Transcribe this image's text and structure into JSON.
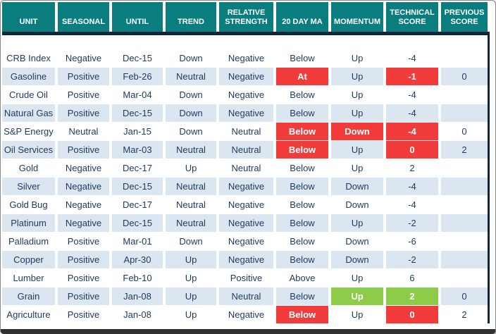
{
  "table": {
    "columns": [
      {
        "key": "unit",
        "label": "UNIT"
      },
      {
        "key": "seasonal",
        "label": "SEASONAL"
      },
      {
        "key": "until",
        "label": "UNTIL"
      },
      {
        "key": "trend",
        "label": "TREND"
      },
      {
        "key": "relative-strength",
        "label": "RELATIVE STRENGTH"
      },
      {
        "key": "20-day-ma",
        "label": "20 DAY MA"
      },
      {
        "key": "momentum",
        "label": "MOMENTUM"
      },
      {
        "key": "technical-score",
        "label": "TECHNICAL SCORE"
      },
      {
        "key": "previous-score",
        "label": "PREVIOUS SCORE"
      }
    ],
    "rows": [
      {
        "values": [
          "CRB Index",
          "Negative",
          "Dec-15",
          "Down",
          "Negative",
          "Below",
          "Up",
          "-4",
          ""
        ],
        "hl": {}
      },
      {
        "values": [
          "Gasoline",
          "Positive",
          "Feb-26",
          "Neutral",
          "Negative",
          "At",
          "Up",
          "-1",
          "0"
        ],
        "hl": {
          "5": "red",
          "7": "red"
        }
      },
      {
        "values": [
          "Crude Oil",
          "Positive",
          "Mar-04",
          "Down",
          "Negative",
          "Below",
          "Up",
          "-4",
          ""
        ],
        "hl": {}
      },
      {
        "values": [
          "Natural Gas",
          "Positive",
          "Dec-15",
          "Down",
          "Negative",
          "Below",
          "Up",
          "-4",
          ""
        ],
        "hl": {}
      },
      {
        "values": [
          "S&P Energy",
          "Neutral",
          "Jan-15",
          "Down",
          "Neutral",
          "Below",
          "Down",
          "-4",
          "0"
        ],
        "hl": {
          "5": "red",
          "6": "red",
          "7": "red"
        }
      },
      {
        "values": [
          "Oil Services",
          "Positive",
          "Mar-03",
          "Neutral",
          "Neutral",
          "Below",
          "Up",
          "0",
          "2"
        ],
        "hl": {
          "5": "red",
          "7": "red"
        }
      },
      {
        "values": [
          "Gold",
          "Negative",
          "Dec-17",
          "Up",
          "Neutral",
          "Below",
          "Up",
          "2",
          ""
        ],
        "hl": {}
      },
      {
        "values": [
          "Silver",
          "Negative",
          "Dec-15",
          "Neutral",
          "Negative",
          "Below",
          "Down",
          "-4",
          ""
        ],
        "hl": {}
      },
      {
        "values": [
          "Gold Bug",
          "Negative",
          "Dec-17",
          "Neutral",
          "Negative",
          "Below",
          "Down",
          "-4",
          ""
        ],
        "hl": {}
      },
      {
        "values": [
          "Platinum",
          "Negative",
          "Dec-15",
          "Neutral",
          "Negative",
          "Below",
          "Up",
          "-2",
          ""
        ],
        "hl": {}
      },
      {
        "values": [
          "Palladium",
          "Positive",
          "Mar-01",
          "Down",
          "Negative",
          "Below",
          "Down",
          "-6",
          ""
        ],
        "hl": {}
      },
      {
        "values": [
          "Copper",
          "Positive",
          "Apr-30",
          "Up",
          "Negative",
          "Below",
          "Down",
          "-2",
          ""
        ],
        "hl": {}
      },
      {
        "values": [
          "Lumber",
          "Positive",
          "Feb-10",
          "Up",
          "Positive",
          "Above",
          "Up",
          "6",
          ""
        ],
        "hl": {}
      },
      {
        "values": [
          "Grain",
          "Positive",
          "Jan-08",
          "Up",
          "Neutral",
          "Below",
          "Up",
          "2",
          "0"
        ],
        "hl": {
          "6": "green",
          "7": "green"
        }
      },
      {
        "values": [
          "Agriculture",
          "Positive",
          "Jan-08",
          "Up",
          "Negative",
          "Below",
          "Up",
          "0",
          "2"
        ],
        "hl": {
          "5": "red",
          "7": "red"
        }
      }
    ]
  },
  "colors": {
    "header_bg": "#0A7E7E",
    "header_text": "#FFFFFF",
    "divider_navy": "#112638",
    "stripe_blue": "#DCE6F1",
    "highlight_red": "#F23B3B",
    "highlight_green": "#8DCC48",
    "data_text_navy": "#1F3A5F",
    "frame_bottom_bar": "#313131"
  }
}
